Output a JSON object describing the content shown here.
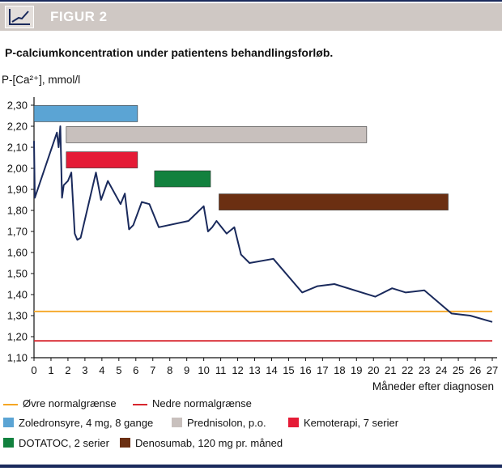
{
  "header": {
    "title": "FIGUR 2",
    "icon": "line-chart-icon"
  },
  "caption": "P-calciumkoncentration under patientens behandlingsforløb.",
  "chart_data": {
    "type": "line",
    "ylabel": "P-[Ca²⁺], mmol/l",
    "xlabel": "Måneder efter diagnosen",
    "xlim": [
      0,
      27
    ],
    "ylim": [
      1.1,
      2.3
    ],
    "x_ticks": [
      "0",
      "1",
      "2",
      "3",
      "4",
      "5",
      "6",
      "7",
      "8",
      "9",
      "10",
      "11",
      "12",
      "13",
      "14",
      "15",
      "16",
      "17",
      "18",
      "19",
      "20",
      "21",
      "22",
      "23",
      "24",
      "25",
      "26",
      "27"
    ],
    "y_ticks": [
      "1,10",
      "1,20",
      "1,30",
      "1,40",
      "1,50",
      "1,60",
      "1,70",
      "1,80",
      "1,90",
      "2,00",
      "2,10",
      "2,20",
      "2,30"
    ],
    "series": [
      {
        "name": "P-[Ca²⁺]",
        "color": "#1a2a5c",
        "points": [
          [
            0,
            2.13
          ],
          [
            0.05,
            1.86
          ],
          [
            1.35,
            2.17
          ],
          [
            1.45,
            2.1
          ],
          [
            1.55,
            2.2
          ],
          [
            1.65,
            1.86
          ],
          [
            1.75,
            1.92
          ],
          [
            2.0,
            1.94
          ],
          [
            2.2,
            1.98
          ],
          [
            2.4,
            1.69
          ],
          [
            2.55,
            1.66
          ],
          [
            2.75,
            1.67
          ],
          [
            3.65,
            1.98
          ],
          [
            3.95,
            1.85
          ],
          [
            4.35,
            1.94
          ],
          [
            5.1,
            1.83
          ],
          [
            5.35,
            1.88
          ],
          [
            5.6,
            1.71
          ],
          [
            5.85,
            1.73
          ],
          [
            6.35,
            1.84
          ],
          [
            6.8,
            1.83
          ],
          [
            7.35,
            1.72
          ],
          [
            9.1,
            1.75
          ],
          [
            10.0,
            1.82
          ],
          [
            10.25,
            1.7
          ],
          [
            10.5,
            1.72
          ],
          [
            10.75,
            1.75
          ],
          [
            11.35,
            1.69
          ],
          [
            11.8,
            1.72
          ],
          [
            12.2,
            1.59
          ],
          [
            12.7,
            1.55
          ],
          [
            14.1,
            1.57
          ],
          [
            15.8,
            1.41
          ],
          [
            16.7,
            1.44
          ],
          [
            17.7,
            1.45
          ],
          [
            20.1,
            1.39
          ],
          [
            21.1,
            1.43
          ],
          [
            21.9,
            1.41
          ],
          [
            23.0,
            1.42
          ],
          [
            24.6,
            1.31
          ],
          [
            25.7,
            1.3
          ],
          [
            27.0,
            1.27
          ]
        ]
      }
    ],
    "reference_lines": [
      {
        "name": "Øvre normalgrænse",
        "y": 1.32,
        "color": "#f5a623"
      },
      {
        "name": "Nedre normalgrænse",
        "y": 1.18,
        "color": "#d7262e"
      }
    ],
    "treatment_bars": [
      {
        "name": "Zoledronsyre, 4 mg, 8 gange",
        "x0": 0,
        "x1": 6.1,
        "y": 2.26,
        "color": "#5ba4d4"
      },
      {
        "name": "Prednisolon, p.o.",
        "x0": 1.9,
        "x1": 19.6,
        "y": 2.16,
        "color": "#c8c0bd"
      },
      {
        "name": "Kemoterapi, 7 serier",
        "x0": 1.9,
        "x1": 6.1,
        "y": 2.04,
        "color": "#e51b36"
      },
      {
        "name": "DOTATOC, 2 serier",
        "x0": 7.1,
        "x1": 10.4,
        "y": 1.95,
        "color": "#12813e"
      },
      {
        "name": "Denosumab, 120 mg pr. måned",
        "x0": 10.9,
        "x1": 24.4,
        "y": 1.84,
        "color": "#6b2f12"
      }
    ]
  },
  "legend": {
    "lines": [
      "Øvre normalgrænse",
      "Nedre normalgrænse"
    ],
    "boxes": [
      "Zoledronsyre, 4 mg, 8 gange",
      "Prednisolon, p.o.",
      "Kemoterapi, 7 serier",
      "DOTATOC, 2 serier",
      "Denosumab, 120 mg pr. måned"
    ]
  }
}
